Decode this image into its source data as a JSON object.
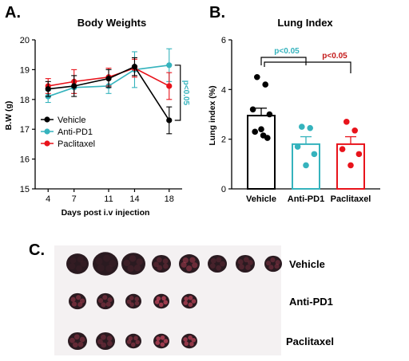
{
  "colors": {
    "vehicle": "#000000",
    "anti_pd1": "#35b3bd",
    "paclitaxel": "#e8131b",
    "sig_cyan": "#35b3bd",
    "sig_red": "#c41a1a",
    "lung_dark": "#2a1a20",
    "lung_pink": "#e8506a"
  },
  "panels": {
    "a": "A.",
    "b": "B.",
    "c": "C."
  },
  "chart_data": [
    {
      "type": "line",
      "title": "Body Weights",
      "xlabel": "Days post i.v injection",
      "ylabel": "B.W (g)",
      "x": [
        4,
        7,
        11,
        14,
        18
      ],
      "xticks": [
        "4",
        "7",
        "11",
        "14",
        "18"
      ],
      "ylim": [
        15,
        20
      ],
      "yticks": [
        "15",
        "16",
        "17",
        "18",
        "19",
        "20"
      ],
      "grid": false,
      "legend": "left",
      "series": [
        {
          "name": "Vehicle",
          "values": [
            18.35,
            18.45,
            18.7,
            19.1,
            17.3
          ],
          "errors": [
            0.25,
            0.35,
            0.3,
            0.3,
            0.45
          ]
        },
        {
          "name": "Anti-PD1",
          "values": [
            18.1,
            18.4,
            18.45,
            19.0,
            19.15
          ],
          "errors": [
            0.2,
            0.2,
            0.25,
            0.6,
            0.55
          ]
        },
        {
          "name": "Paclitaxel",
          "values": [
            18.45,
            18.6,
            18.75,
            19.05,
            18.45
          ],
          "errors": [
            0.25,
            0.4,
            0.3,
            0.3,
            0.45
          ]
        }
      ],
      "annotation": "p<0.05"
    },
    {
      "type": "bar",
      "title": "Lung Index",
      "ylabel": "Lung index (%)",
      "categories": [
        "Vehicle",
        "Anti-PD1",
        "Paclitaxel"
      ],
      "values": [
        2.95,
        1.8,
        1.8
      ],
      "errors": [
        0.3,
        0.3,
        0.3
      ],
      "points": [
        [
          4.5,
          4.2,
          3.2,
          3.0,
          2.4,
          2.3,
          2.05,
          2.15
        ],
        [
          2.5,
          2.45,
          1.7,
          1.4,
          0.95
        ],
        [
          2.7,
          2.35,
          1.6,
          1.4,
          0.95
        ]
      ],
      "ylim": [
        0,
        6
      ],
      "yticks": [
        "0",
        "2",
        "4",
        "6"
      ],
      "annotations": [
        "p<0.05",
        "p<0.05"
      ]
    }
  ],
  "photo": {
    "rows": [
      {
        "label": "Vehicle",
        "count": 8
      },
      {
        "label": "Anti-PD1",
        "count": 5
      },
      {
        "label": "Paclitaxel",
        "count": 5
      }
    ]
  }
}
